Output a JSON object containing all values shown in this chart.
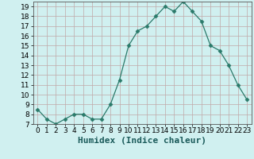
{
  "x": [
    0,
    1,
    2,
    3,
    4,
    5,
    6,
    7,
    8,
    9,
    10,
    11,
    12,
    13,
    14,
    15,
    16,
    17,
    18,
    19,
    20,
    21,
    22,
    23
  ],
  "y": [
    8.5,
    7.5,
    7.0,
    7.5,
    8.0,
    8.0,
    7.5,
    7.5,
    9.0,
    11.5,
    15.0,
    16.5,
    17.0,
    18.0,
    19.0,
    18.5,
    19.5,
    18.5,
    17.5,
    15.0,
    14.5,
    13.0,
    11.0,
    9.5
  ],
  "xlabel": "Humidex (Indice chaleur)",
  "xlim": [
    -0.5,
    23.5
  ],
  "ylim": [
    7,
    19.5
  ],
  "yticks": [
    7,
    8,
    9,
    10,
    11,
    12,
    13,
    14,
    15,
    16,
    17,
    18,
    19
  ],
  "xticks": [
    0,
    1,
    2,
    3,
    4,
    5,
    6,
    7,
    8,
    9,
    10,
    11,
    12,
    13,
    14,
    15,
    16,
    17,
    18,
    19,
    20,
    21,
    22,
    23
  ],
  "line_color": "#2a7a6a",
  "marker": "D",
  "marker_size": 2.5,
  "bg_color": "#d0f0f0",
  "plot_bg_color": "#d0f0f0",
  "grid_color": "#c0a8a8",
  "xlabel_fontsize": 8,
  "tick_fontsize": 6.5
}
